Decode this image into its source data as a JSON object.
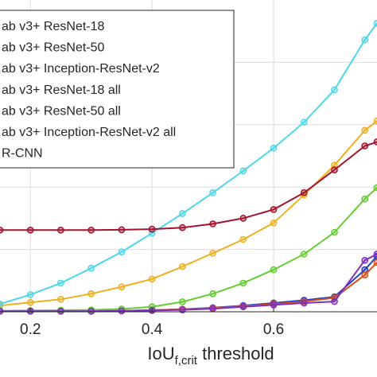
{
  "chart_data": {
    "type": "line",
    "xlabel": "IoU",
    "xlabel_subscript": "f,crit",
    "xlabel_suffix": " threshold",
    "x_ticks": [
      0.2,
      0.4,
      0.6
    ],
    "x_tick_labels": [
      "0.2",
      "0.4",
      "0.6"
    ],
    "xlim": [
      0.15,
      0.77
    ],
    "ylim": [
      0.0,
      1.0
    ],
    "grid": true,
    "legend_position": "top-left",
    "x": [
      0.15,
      0.2,
      0.25,
      0.3,
      0.35,
      0.4,
      0.45,
      0.5,
      0.55,
      0.6,
      0.65,
      0.7,
      0.75,
      0.77
    ],
    "series": [
      {
        "name": "ab v3+ ResNet-18",
        "color": "#EDB120",
        "values": [
          0.02,
          0.03,
          0.04,
          0.058,
          0.08,
          0.105,
          0.145,
          0.188,
          0.232,
          0.285,
          0.375,
          0.47,
          0.582,
          0.612
        ]
      },
      {
        "name": "ab v3+ ResNet-50",
        "color": "#1F3FC8",
        "values": [
          0.002,
          0.002,
          0.002,
          0.002,
          0.003,
          0.005,
          0.008,
          0.013,
          0.02,
          0.028,
          0.037,
          0.048,
          0.135,
          0.178
        ]
      },
      {
        "name": "ab v3+ Inception-ResNet-v2",
        "color": "#4DD8E8",
        "values": [
          0.025,
          0.055,
          0.092,
          0.14,
          0.192,
          0.252,
          0.315,
          0.382,
          0.452,
          0.525,
          0.608,
          0.712,
          0.872,
          0.925
        ]
      },
      {
        "name": "ab v3+ ResNet-18 all",
        "color": "#D95319",
        "values": [
          0.002,
          0.002,
          0.002,
          0.002,
          0.003,
          0.005,
          0.008,
          0.012,
          0.018,
          0.025,
          0.033,
          0.045,
          0.118,
          0.158
        ]
      },
      {
        "name": "ab v3+ ResNet-50 all",
        "color": "#66CC33",
        "values": [
          0.003,
          0.004,
          0.005,
          0.006,
          0.009,
          0.016,
          0.032,
          0.058,
          0.092,
          0.135,
          0.185,
          0.255,
          0.362,
          0.398
        ]
      },
      {
        "name": "ab v3+ Inception-ResNet-v2 all",
        "color": "#7E2FC0",
        "values": [
          0.002,
          0.002,
          0.002,
          0.002,
          0.003,
          0.004,
          0.006,
          0.01,
          0.016,
          0.022,
          0.028,
          0.033,
          0.165,
          0.185
        ]
      },
      {
        "name": "R-CNN",
        "color": "#A2142F",
        "values": [
          0.262,
          0.262,
          0.262,
          0.262,
          0.263,
          0.265,
          0.27,
          0.282,
          0.3,
          0.328,
          0.382,
          0.455,
          0.532,
          0.545
        ]
      }
    ]
  }
}
